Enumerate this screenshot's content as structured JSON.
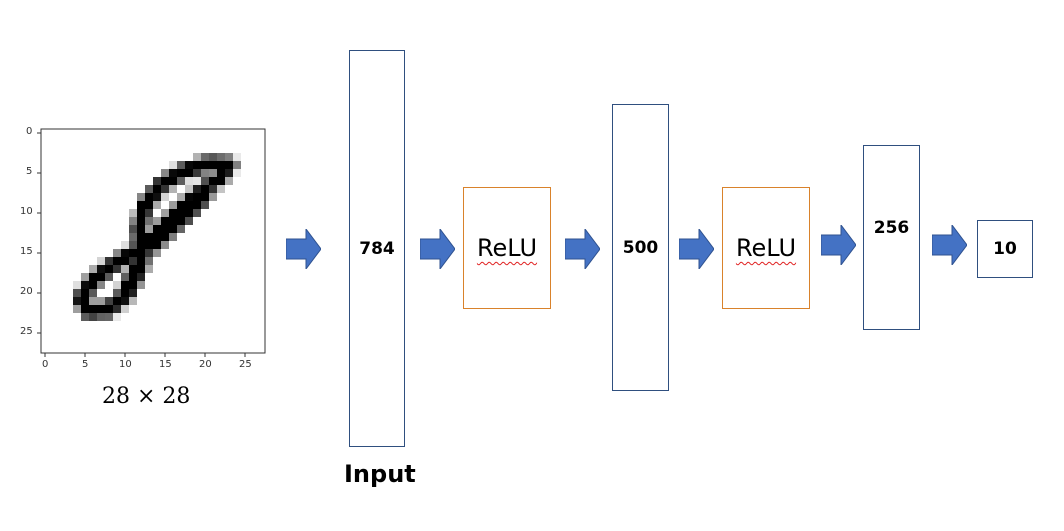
{
  "image": {
    "caption": "28 × 28",
    "x_ticks": [
      "0",
      "5",
      "10",
      "15",
      "20",
      "25"
    ],
    "y_ticks": [
      "0",
      "5",
      "10",
      "15",
      "20",
      "25"
    ],
    "digit_depicted": "8"
  },
  "layers": {
    "input_units": "784",
    "input_label": "Input",
    "activation_1": "ReLU",
    "hidden_1_units": "500",
    "activation_2": "ReLU",
    "hidden_2_units": "256",
    "output_units": "10"
  },
  "colors": {
    "layer_border": "#2f4f7f",
    "relu_border": "#d9822b",
    "arrow_fill": "#4472c4"
  }
}
